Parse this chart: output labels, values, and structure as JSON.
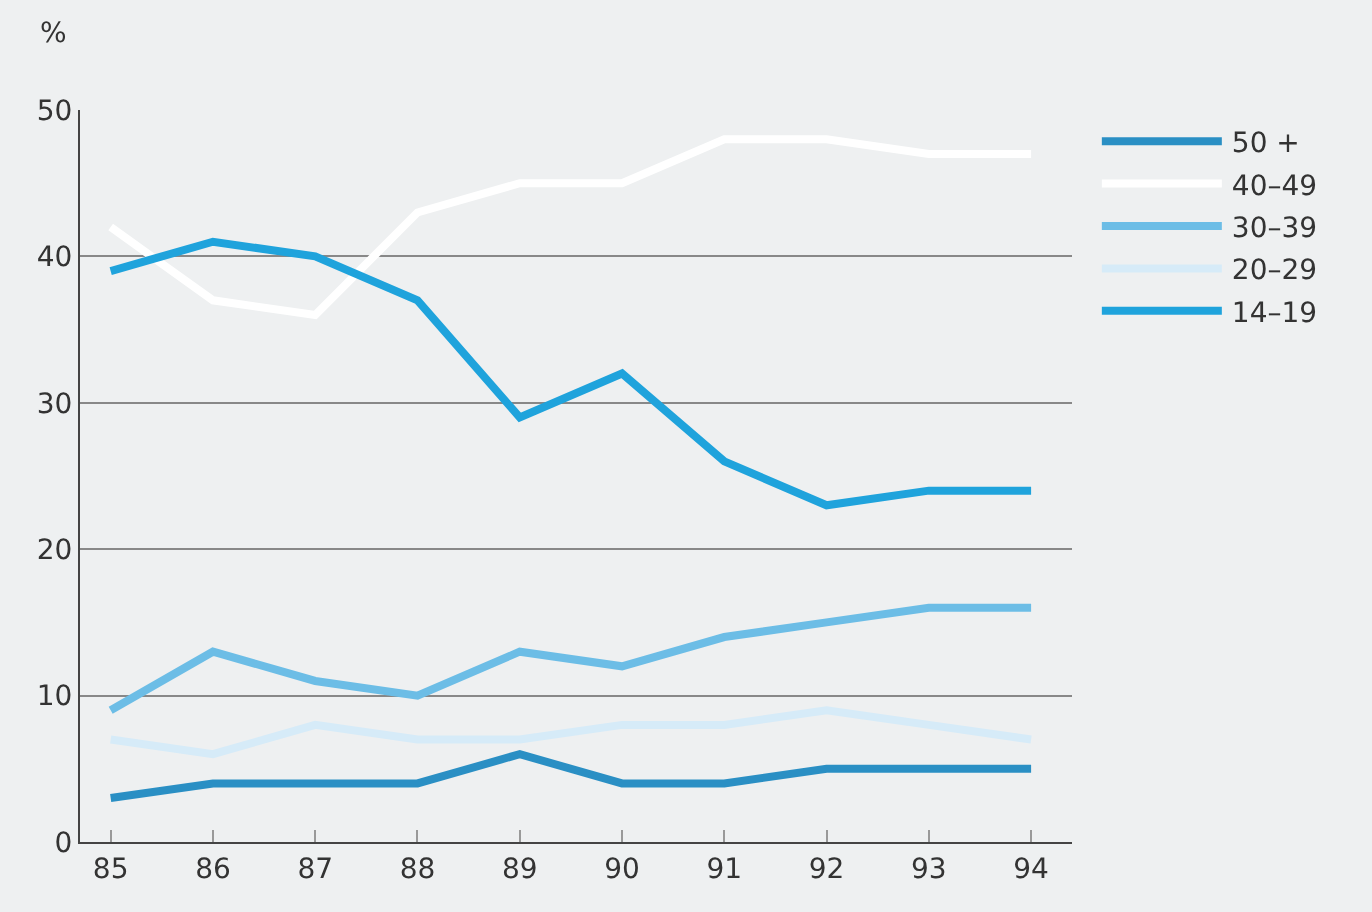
{
  "chart_data": {
    "type": "line",
    "ylabel": "%",
    "categories": [
      "85",
      "86",
      "87",
      "88",
      "89",
      "90",
      "91",
      "92",
      "93",
      "94"
    ],
    "series": [
      {
        "name": "50 +",
        "color": "#2a8fc4",
        "values": [
          3,
          4,
          4,
          4,
          6,
          4,
          4,
          5,
          5,
          5
        ]
      },
      {
        "name": "40–49",
        "color": "#ffffff",
        "values": [
          42,
          37,
          36,
          43,
          45,
          45,
          48,
          48,
          47,
          47
        ]
      },
      {
        "name": "30–39",
        "color": "#6cbde6",
        "values": [
          9,
          13,
          11,
          10,
          13,
          12,
          14,
          15,
          16,
          16
        ]
      },
      {
        "name": "20–29",
        "color": "#d6ebf8",
        "values": [
          7,
          6,
          8,
          7,
          7,
          8,
          8,
          9,
          8,
          7
        ]
      },
      {
        "name": "14–19",
        "color": "#1fa3dc",
        "values": [
          39,
          41,
          40,
          37,
          29,
          32,
          26,
          23,
          24,
          24
        ]
      }
    ],
    "ylim": [
      0,
      50
    ],
    "yticks": [
      0,
      10,
      20,
      30,
      40,
      50
    ],
    "grid": "y",
    "legend": "top right",
    "line_style": "solid",
    "marker": "none"
  }
}
